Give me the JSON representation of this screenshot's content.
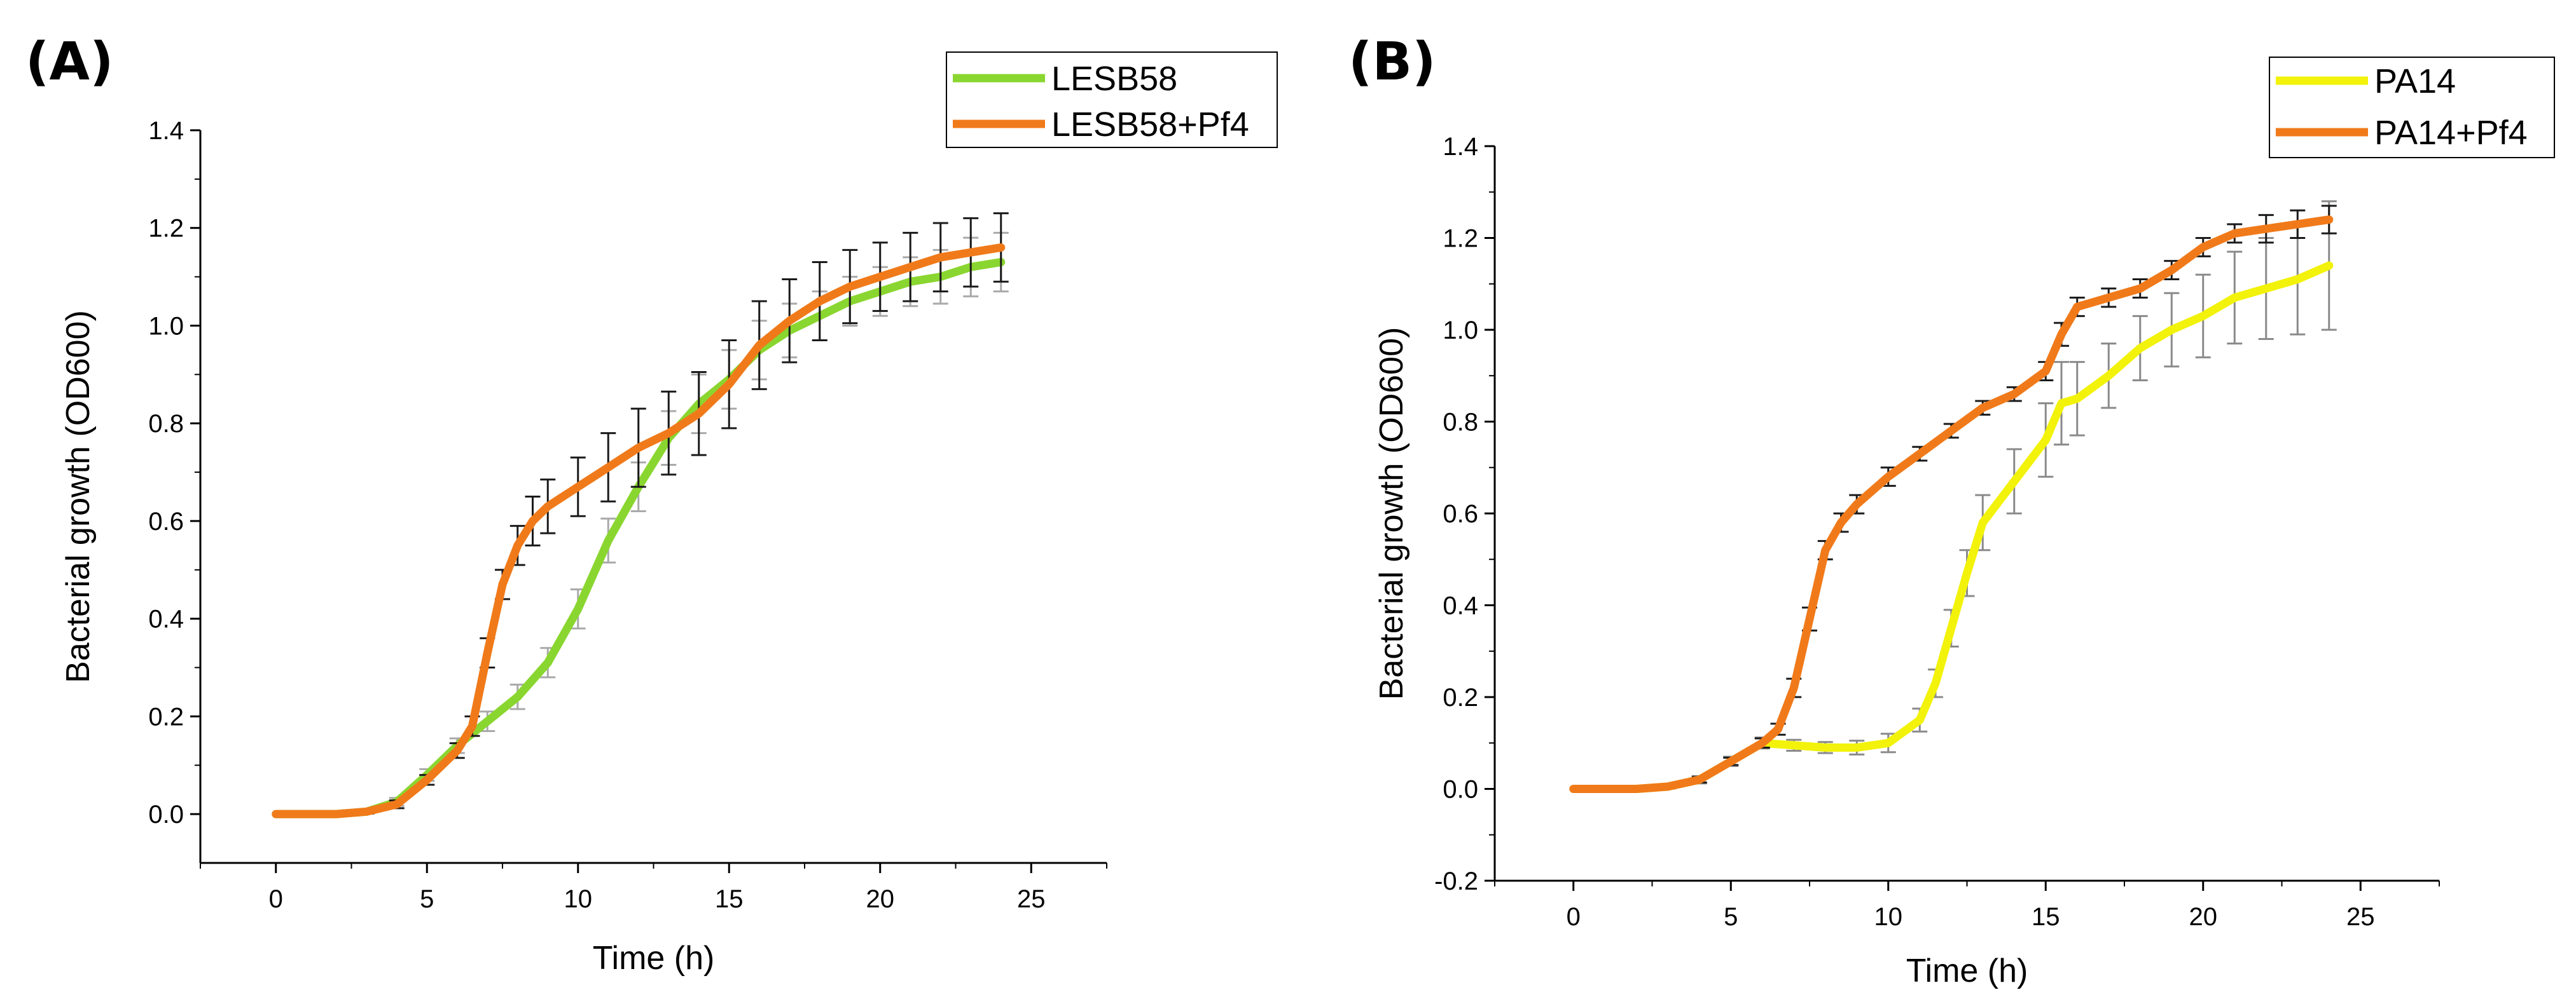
{
  "chart_data": [
    {
      "type": "line",
      "panel_label": "(A)",
      "xlabel": "Time (h)",
      "ylabel": "Bacterial growth (OD600)",
      "xlim": [
        -2.5,
        27.5
      ],
      "ylim": [
        -0.1,
        1.4
      ],
      "xticks": [
        0,
        5,
        10,
        15,
        20,
        25
      ],
      "yticks": [
        0.0,
        0.2,
        0.4,
        0.6,
        0.8,
        1.0,
        1.2,
        1.4
      ],
      "x_tick_labels": [
        "0",
        "5",
        "10",
        "15",
        "20",
        "25"
      ],
      "y_tick_labels": [
        "0.0",
        "0.2",
        "0.4",
        "0.6",
        "0.8",
        "1.0",
        "1.2",
        "1.4"
      ],
      "legend_position": "top-right",
      "series": [
        {
          "name": "LESB58",
          "color": "#8ad630",
          "error_color": "#a9a9a9",
          "x": [
            0,
            1,
            2,
            3,
            4,
            5,
            6,
            7,
            8,
            9,
            10,
            11,
            12,
            13,
            14,
            15,
            16,
            17,
            18,
            19,
            20,
            21,
            22,
            23,
            24
          ],
          "y": [
            0.0,
            0.0,
            0.0,
            0.005,
            0.025,
            0.08,
            0.14,
            0.19,
            0.24,
            0.31,
            0.42,
            0.56,
            0.67,
            0.77,
            0.84,
            0.89,
            0.95,
            0.99,
            1.02,
            1.05,
            1.07,
            1.09,
            1.1,
            1.12,
            1.13
          ],
          "err": [
            0.0,
            0.0,
            0.0,
            0.004,
            0.008,
            0.012,
            0.015,
            0.02,
            0.025,
            0.03,
            0.04,
            0.045,
            0.05,
            0.055,
            0.06,
            0.06,
            0.06,
            0.055,
            0.05,
            0.05,
            0.05,
            0.05,
            0.055,
            0.06,
            0.06
          ]
        },
        {
          "name": "LESB58+Pf4",
          "color": "#f07a1a",
          "error_color": "#1a1a1a",
          "x": [
            0,
            1,
            2,
            3,
            4,
            5,
            6,
            6.5,
            7,
            7.5,
            8,
            8.5,
            9,
            10,
            11,
            12,
            13,
            14,
            15,
            16,
            17,
            18,
            19,
            20,
            21,
            22,
            23,
            24
          ],
          "y": [
            0.0,
            0.0,
            0.0,
            0.005,
            0.02,
            0.07,
            0.13,
            0.18,
            0.33,
            0.47,
            0.55,
            0.6,
            0.63,
            0.67,
            0.71,
            0.75,
            0.78,
            0.82,
            0.88,
            0.96,
            1.01,
            1.05,
            1.08,
            1.1,
            1.12,
            1.14,
            1.15,
            1.16
          ],
          "err": [
            0.0,
            0.0,
            0.0,
            0.004,
            0.008,
            0.01,
            0.015,
            0.02,
            0.03,
            0.03,
            0.04,
            0.05,
            0.055,
            0.06,
            0.07,
            0.08,
            0.085,
            0.085,
            0.09,
            0.09,
            0.085,
            0.08,
            0.075,
            0.07,
            0.07,
            0.07,
            0.07,
            0.07
          ]
        }
      ]
    },
    {
      "type": "line",
      "panel_label": "(B)",
      "xlabel": "Time (h)",
      "ylabel": "Bacterial growth (OD600)",
      "xlim": [
        -2.5,
        27.5
      ],
      "ylim": [
        -0.2,
        1.4
      ],
      "xticks": [
        0,
        5,
        10,
        15,
        20,
        25
      ],
      "yticks": [
        -0.2,
        0.0,
        0.2,
        0.4,
        0.6,
        0.8,
        1.0,
        1.2,
        1.4
      ],
      "x_tick_labels": [
        "0",
        "5",
        "10",
        "15",
        "20",
        "25"
      ],
      "y_tick_labels": [
        "-0.2",
        "0.0",
        "0.2",
        "0.4",
        "0.6",
        "0.8",
        "1.0",
        "1.2",
        "1.4"
      ],
      "legend_position": "top-right",
      "series": [
        {
          "name": "PA14",
          "color": "#f2f20a",
          "error_color": "#8a8a8a",
          "x": [
            0,
            1,
            2,
            3,
            4,
            5,
            6,
            7,
            8,
            9,
            10,
            11,
            11.5,
            12,
            12.5,
            13,
            14,
            15,
            15.5,
            16,
            17,
            18,
            19,
            20,
            21,
            22,
            23,
            24
          ],
          "y": [
            0.0,
            0.0,
            0.0,
            0.005,
            0.02,
            0.06,
            0.1,
            0.095,
            0.09,
            0.09,
            0.1,
            0.15,
            0.23,
            0.35,
            0.47,
            0.58,
            0.67,
            0.76,
            0.84,
            0.85,
            0.9,
            0.96,
            1.0,
            1.03,
            1.07,
            1.09,
            1.11,
            1.14
          ],
          "err": [
            0.0,
            0.0,
            0.0,
            0.004,
            0.008,
            0.01,
            0.012,
            0.012,
            0.012,
            0.015,
            0.02,
            0.025,
            0.03,
            0.04,
            0.05,
            0.06,
            0.07,
            0.08,
            0.09,
            0.08,
            0.07,
            0.07,
            0.08,
            0.09,
            0.1,
            0.11,
            0.12,
            0.14
          ]
        },
        {
          "name": "PA14+Pf4",
          "color": "#f07a1a",
          "error_color": "#1a1a1a",
          "x": [
            0,
            1,
            2,
            3,
            4,
            5,
            6,
            6.5,
            7,
            7.5,
            8,
            8.5,
            9,
            10,
            11,
            12,
            13,
            14,
            15,
            15.5,
            16,
            17,
            18,
            19,
            20,
            21,
            22,
            23,
            24
          ],
          "y": [
            0.0,
            0.0,
            0.0,
            0.005,
            0.02,
            0.06,
            0.1,
            0.13,
            0.22,
            0.37,
            0.52,
            0.58,
            0.62,
            0.68,
            0.73,
            0.78,
            0.83,
            0.86,
            0.91,
            0.99,
            1.05,
            1.07,
            1.09,
            1.13,
            1.18,
            1.21,
            1.22,
            1.23,
            1.24
          ],
          "err": [
            0.0,
            0.0,
            0.0,
            0.004,
            0.006,
            0.008,
            0.01,
            0.012,
            0.02,
            0.025,
            0.02,
            0.02,
            0.02,
            0.02,
            0.015,
            0.015,
            0.015,
            0.015,
            0.02,
            0.025,
            0.02,
            0.02,
            0.02,
            0.02,
            0.02,
            0.02,
            0.03,
            0.03,
            0.03
          ]
        }
      ]
    }
  ]
}
